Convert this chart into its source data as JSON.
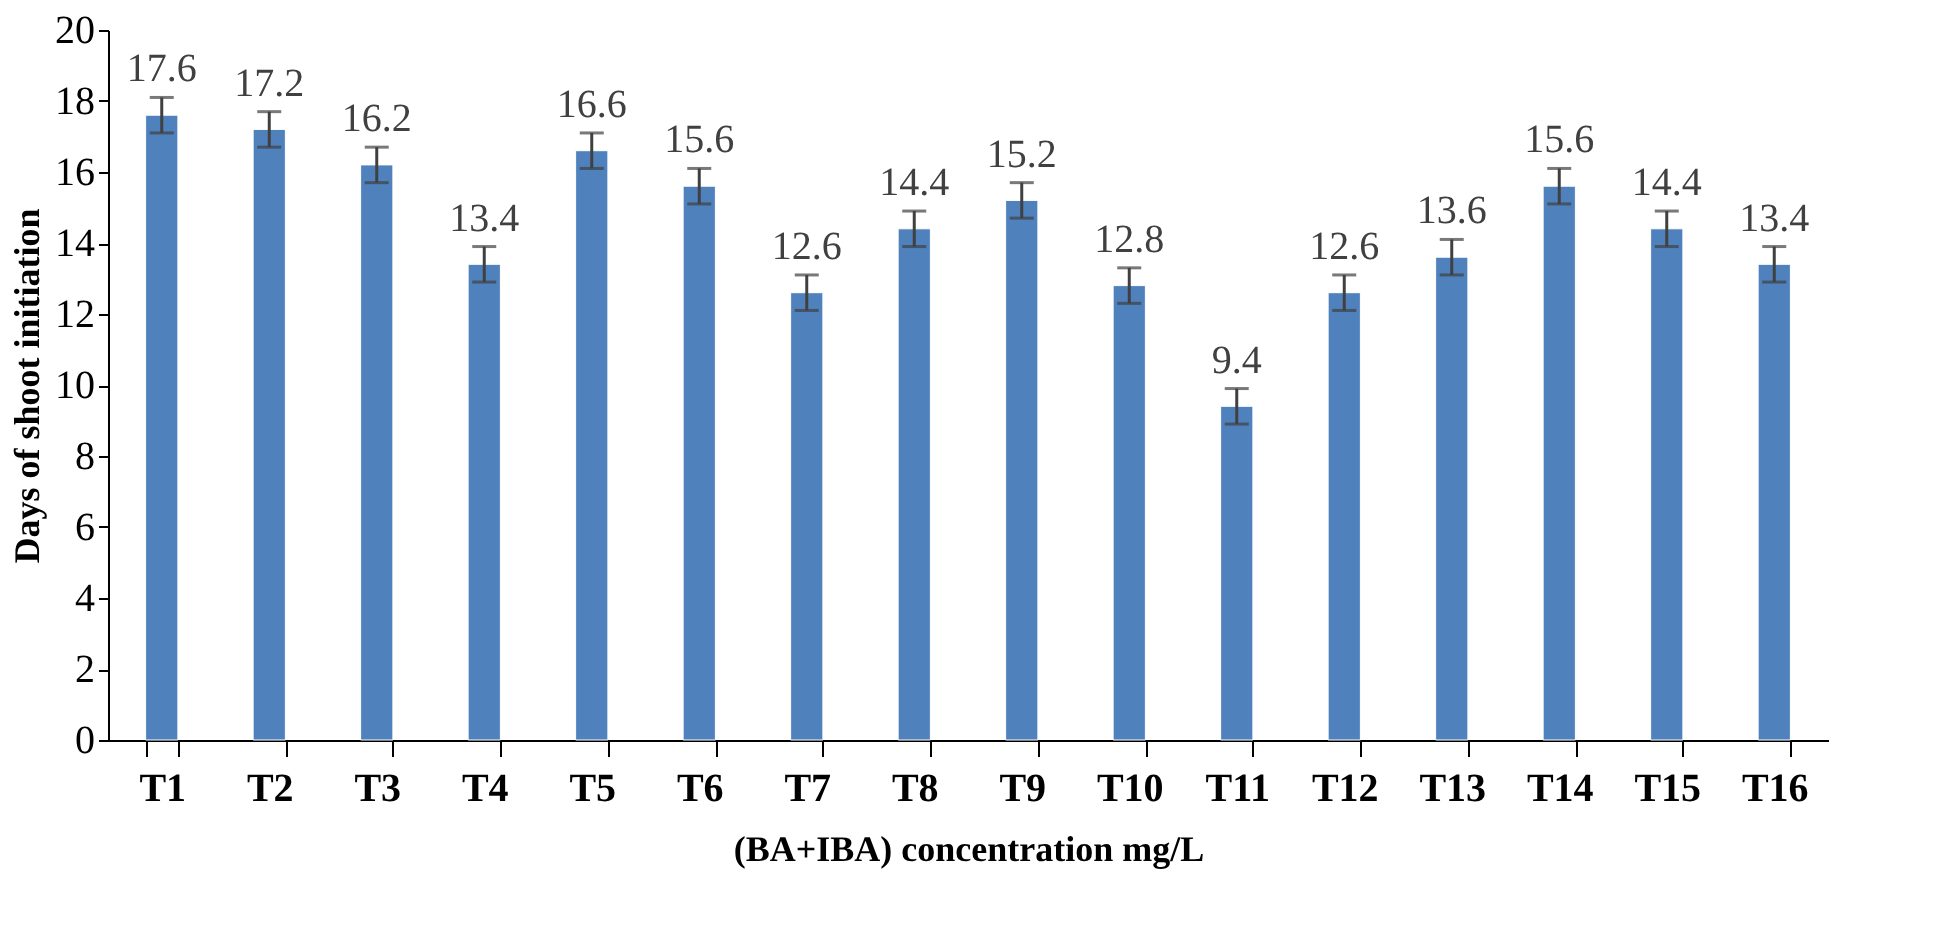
{
  "chart_data": {
    "type": "bar",
    "xlabel": "(BA+IBA) concentration mg/L",
    "ylabel": "Days of shoot initiation",
    "categories": [
      "T1",
      "T2",
      "T3",
      "T4",
      "T5",
      "T6",
      "T7",
      "T8",
      "T9",
      "T10",
      "T11",
      "T12",
      "T13",
      "T14",
      "T15",
      "T16"
    ],
    "values": [
      17.6,
      17.2,
      16.2,
      13.4,
      16.6,
      15.6,
      12.6,
      14.4,
      15.2,
      12.8,
      9.4,
      12.6,
      13.6,
      15.6,
      14.4,
      13.4
    ],
    "errors": [
      0.5,
      0.5,
      0.5,
      0.5,
      0.5,
      0.5,
      0.5,
      0.5,
      0.5,
      0.5,
      0.5,
      0.5,
      0.5,
      0.5,
      0.5,
      0.5
    ],
    "color": "#4f81bd",
    "ylim": [
      0,
      20
    ],
    "yticks": [
      0,
      2,
      4,
      6,
      8,
      10,
      12,
      14,
      16,
      18,
      20
    ],
    "grid": false,
    "data_labels": true
  }
}
